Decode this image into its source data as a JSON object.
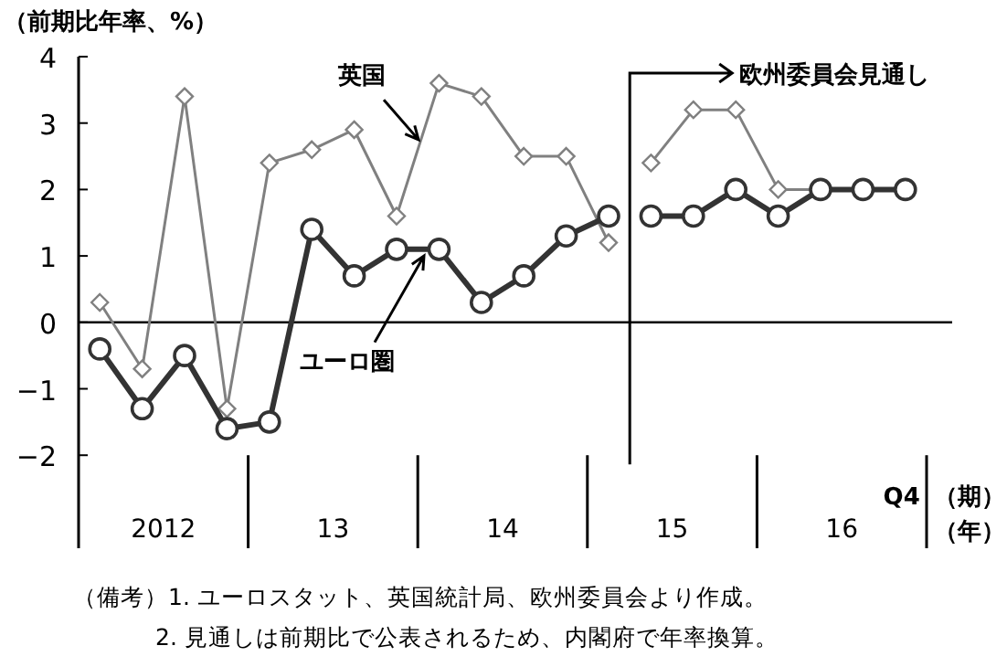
{
  "chart_data": {
    "type": "line",
    "ylabel": "（前期比年率、%）",
    "xlabel": "（年）",
    "categories": [
      null,
      null,
      null,
      null,
      null,
      null,
      null,
      null,
      null,
      null,
      null,
      null,
      null,
      null,
      null,
      null,
      null,
      null,
      null,
      "Q4"
    ],
    "ylim": [
      -3.4,
      4
    ],
    "yticks": [
      -2,
      -1,
      0,
      1,
      2,
      3,
      4
    ],
    "series": [
      {
        "name": "英国",
        "color": "#808080",
        "marker": "diamond",
        "values": [
          0.3,
          -0.7,
          3.4,
          -1.3,
          2.4,
          2.6,
          2.9,
          1.6,
          3.6,
          3.4,
          2.5,
          2.5,
          1.2,
          null,
          null,
          null,
          null,
          null,
          null,
          null
        ]
      },
      {
        "color": "#808080",
        "marker": "diamond",
        "values": [
          null,
          null,
          null,
          null,
          null,
          null,
          null,
          null,
          null,
          null,
          null,
          null,
          null,
          2.4,
          3.2,
          3.2,
          2.0,
          2.0,
          2.0,
          2.0
        ]
      },
      {
        "name": "ユーロ圏",
        "color": "#333333",
        "marker": "circle",
        "values": [
          -0.4,
          -1.3,
          -0.5,
          -1.6,
          -1.5,
          1.4,
          0.7,
          1.1,
          1.1,
          0.3,
          0.7,
          1.3,
          1.6,
          null,
          null,
          null,
          null,
          null,
          null,
          null
        ]
      },
      {
        "color": "#333333",
        "marker": "circle",
        "values": [
          null,
          null,
          null,
          null,
          null,
          null,
          null,
          null,
          null,
          null,
          null,
          null,
          null,
          1.6,
          1.6,
          2.0,
          1.6,
          2.0,
          2.0,
          2.0
        ]
      }
    ],
    "annotations": [
      "2012",
      "13",
      "14",
      "15",
      "16",
      "（期）",
      "欧州委員会見通し",
      "（備考）1. ユーロスタット、英国統計局、欧州委員会より作成。",
      "2. 見通しは前期比で公表されるため、内閣府で年率換算。"
    ]
  }
}
